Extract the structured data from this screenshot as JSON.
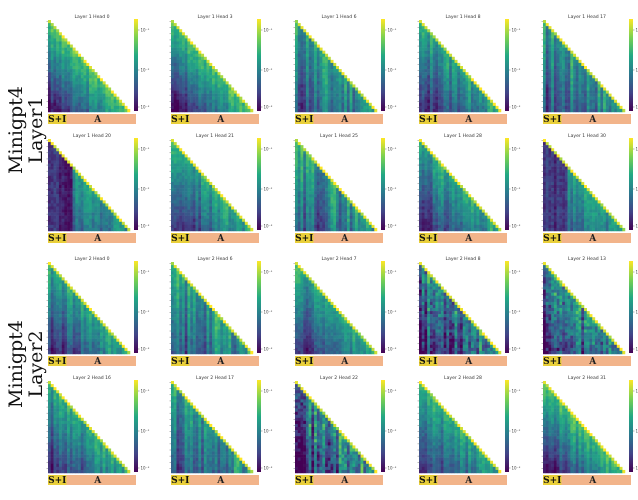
{
  "chart_data": {
    "type": "heatmap",
    "layout": {
      "rows": 4,
      "cols": 5
    },
    "groups": [
      {
        "label_line1": "Minigpt4",
        "label_line2": "Layer1",
        "rows": [
          0,
          1
        ]
      },
      {
        "label_line1": "Minigpt4",
        "label_line2": "Layer2",
        "rows": [
          2,
          3
        ]
      }
    ],
    "segment_labels": {
      "system_image": "S+I",
      "answer": "A"
    },
    "segment_colors": {
      "system_image": "#e9cf3a",
      "answer": "#f2b48a"
    },
    "colormap": [
      "#440154",
      "#414487",
      "#2a788e",
      "#22a884",
      "#7ad151",
      "#fde725"
    ],
    "panels": [
      {
        "title": "Layer 1 Head 0",
        "ticks": [
          "10⁻¹",
          "10⁻²",
          "10⁻³"
        ],
        "pattern": "diagfade",
        "seed": 3
      },
      {
        "title": "Layer 1 Head 3",
        "ticks": [
          "10⁻¹",
          "10⁻²",
          "10⁻³"
        ],
        "pattern": "diagfade",
        "seed": 7
      },
      {
        "title": "Layer 1 Head 6",
        "ticks": [
          "10⁻¹",
          "10⁻²",
          "10⁻³"
        ],
        "pattern": "stripes",
        "seed": 11
      },
      {
        "title": "Layer 1 Head 8",
        "ticks": [
          "10⁻¹",
          "10⁻²",
          "10⁻³"
        ],
        "pattern": "diag",
        "seed": 13
      },
      {
        "title": "Layer 1 Head 17",
        "ticks": [
          "10⁻¹",
          "10⁻²",
          "10⁻³"
        ],
        "pattern": "stripes",
        "seed": 17
      },
      {
        "title": "Layer 1 Head 20",
        "ticks": [
          "10⁻¹",
          "10⁻²",
          "10⁻³"
        ],
        "pattern": "leftdark",
        "seed": 19
      },
      {
        "title": "Layer 1 Head 21",
        "ticks": [
          "10⁻¹",
          "10⁻²",
          "10⁻³"
        ],
        "pattern": "diag",
        "seed": 23
      },
      {
        "title": "Layer 1 Head 25",
        "ticks": [
          "10⁻¹",
          "10⁻²",
          "10⁻³"
        ],
        "pattern": "stripes",
        "seed": 29
      },
      {
        "title": "Layer 1 Head 28",
        "ticks": [
          "10⁻¹",
          "10⁻²",
          "10⁻³"
        ],
        "pattern": "diag",
        "seed": 31
      },
      {
        "title": "Layer 1 Head 30",
        "ticks": [
          "10⁻¹",
          "10⁻²",
          "10⁻³"
        ],
        "pattern": "leftdark",
        "seed": 37
      },
      {
        "title": "Layer 2 Head 0",
        "ticks": [
          "10⁻¹",
          "10⁻²",
          "10⁻³"
        ],
        "pattern": "diag",
        "seed": 41
      },
      {
        "title": "Layer 2 Head 6",
        "ticks": [
          "10⁻¹",
          "10⁻²",
          "10⁻³"
        ],
        "pattern": "stripes",
        "seed": 43
      },
      {
        "title": "Layer 2 Head 7",
        "ticks": [
          "10⁻¹",
          "10⁻²",
          "10⁻³"
        ],
        "pattern": "diag",
        "seed": 47
      },
      {
        "title": "Layer 2 Head 8",
        "ticks": [
          "10⁻¹",
          "10⁻²",
          "10⁻³"
        ],
        "pattern": "darkmix",
        "seed": 53
      },
      {
        "title": "Layer 2 Head 13",
        "ticks": [
          "10⁻¹",
          "10⁻²",
          "10⁻³"
        ],
        "pattern": "darkmix",
        "seed": 59
      },
      {
        "title": "Layer 2 Head 16",
        "ticks": [
          "10⁻¹",
          "10⁻²",
          "10⁻³"
        ],
        "pattern": "diag",
        "seed": 61
      },
      {
        "title": "Layer 2 Head 17",
        "ticks": [
          "10⁻¹",
          "10⁻²",
          "10⁻³"
        ],
        "pattern": "stripes",
        "seed": 67
      },
      {
        "title": "Layer 2 Head 22",
        "ticks": [
          "10⁻¹",
          "10⁻²",
          "10⁻³"
        ],
        "pattern": "darkmix",
        "seed": 71
      },
      {
        "title": "Layer 2 Head 28",
        "ticks": [
          "10⁻¹",
          "10⁻²",
          "10⁻³"
        ],
        "pattern": "diag",
        "seed": 73
      },
      {
        "title": "Layer 2 Head 31",
        "ticks": [
          "10⁻¹",
          "10⁻²",
          "10⁻³"
        ],
        "pattern": "diagfade",
        "seed": 79
      }
    ]
  }
}
